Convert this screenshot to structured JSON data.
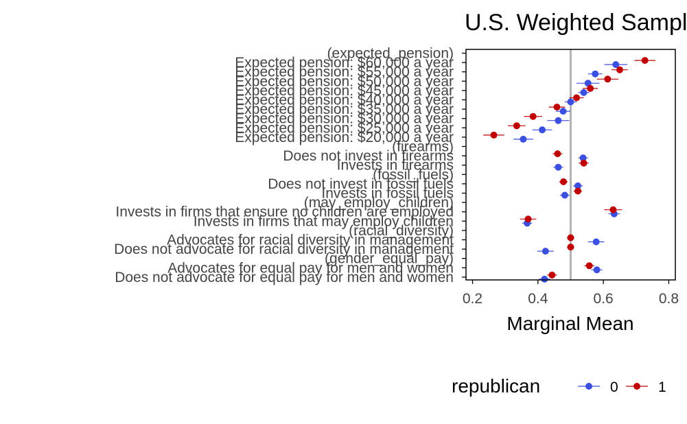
{
  "chart_data": {
    "type": "scatter",
    "title": "U.S. Weighted Sample",
    "xlabel": "Marginal Mean",
    "ylabel": "",
    "xlim": [
      0.18,
      0.82
    ],
    "x_ticks": [
      "0.2",
      "0.4",
      "0.6",
      "0.8"
    ],
    "reference_line": 0.5,
    "grid": false,
    "legend": {
      "title": "republican",
      "placement": "bottom",
      "entries": [
        {
          "label": "0",
          "color": "#3B4FE0"
        },
        {
          "label": "1",
          "color": "#C00000"
        }
      ]
    },
    "categories": [
      "(expected_pension)",
      "Expected pension: $60,000 a year",
      "Expected pension: $55,000 a year",
      "Expected pension: $50,000 a year",
      "Expected pension: $45,000 a year",
      "Expected pension: $40,000 a year",
      "Expected pension: $35,000 a year",
      "Expected pension: $30,000 a year",
      "Expected pension: $25,000 a year",
      "Expected pension: $20,000 a year",
      "(firearms)",
      "Does not invest in firearms",
      "Invests in firearms",
      "(fossil_fuels)",
      "Does not invest in fossil fuels",
      "Invests in fossil fuels",
      "(may_employ_children)",
      "Invests in firms that ensure no children are employed",
      "Invests in firms that may employ children",
      "(racial_diversity)",
      "Advocates for racial diversity in management",
      "Does not advocate for racial diversity in management",
      "(gender_equal_pay)",
      "Advocates for equal pay for men and women",
      "Does not advocate for equal pay for men and women"
    ],
    "series": [
      {
        "name": "0",
        "color": "#3B4FE0",
        "values": [
          null,
          0.638,
          0.575,
          0.553,
          0.54,
          0.5,
          0.477,
          0.462,
          0.413,
          0.355,
          null,
          0.538,
          0.462,
          null,
          0.522,
          0.482,
          null,
          0.633,
          0.367,
          null,
          0.578,
          0.423,
          null,
          0.58,
          0.42
        ],
        "ci_low": [
          null,
          0.603,
          0.553,
          0.518,
          0.523,
          0.482,
          0.455,
          0.428,
          0.383,
          0.325,
          null,
          0.523,
          0.447,
          null,
          0.507,
          0.467,
          null,
          0.615,
          0.352,
          null,
          0.553,
          0.398,
          null,
          0.563,
          0.403
        ],
        "ci_high": [
          null,
          0.673,
          0.597,
          0.588,
          0.557,
          0.518,
          0.499,
          0.496,
          0.443,
          0.385,
          null,
          0.553,
          0.477,
          null,
          0.537,
          0.497,
          null,
          0.651,
          0.382,
          null,
          0.603,
          0.448,
          null,
          0.597,
          0.437
        ]
      },
      {
        "name": "1",
        "color": "#C00000",
        "values": [
          null,
          0.727,
          0.65,
          0.613,
          0.56,
          0.518,
          0.458,
          0.385,
          0.335,
          0.265,
          null,
          0.46,
          0.54,
          null,
          0.478,
          0.522,
          null,
          0.63,
          0.37,
          null,
          0.5,
          0.5,
          null,
          0.557,
          0.443
        ],
        "ci_low": [
          null,
          0.695,
          0.625,
          0.58,
          0.537,
          0.496,
          0.433,
          0.357,
          0.308,
          0.233,
          null,
          0.445,
          0.525,
          null,
          0.465,
          0.509,
          null,
          0.603,
          0.345,
          null,
          0.489,
          0.489,
          null,
          0.542,
          0.428
        ],
        "ci_high": [
          null,
          0.759,
          0.675,
          0.646,
          0.583,
          0.54,
          0.483,
          0.413,
          0.362,
          0.297,
          null,
          0.475,
          0.555,
          null,
          0.491,
          0.535,
          null,
          0.657,
          0.395,
          null,
          0.511,
          0.511,
          null,
          0.572,
          0.458
        ]
      }
    ]
  }
}
